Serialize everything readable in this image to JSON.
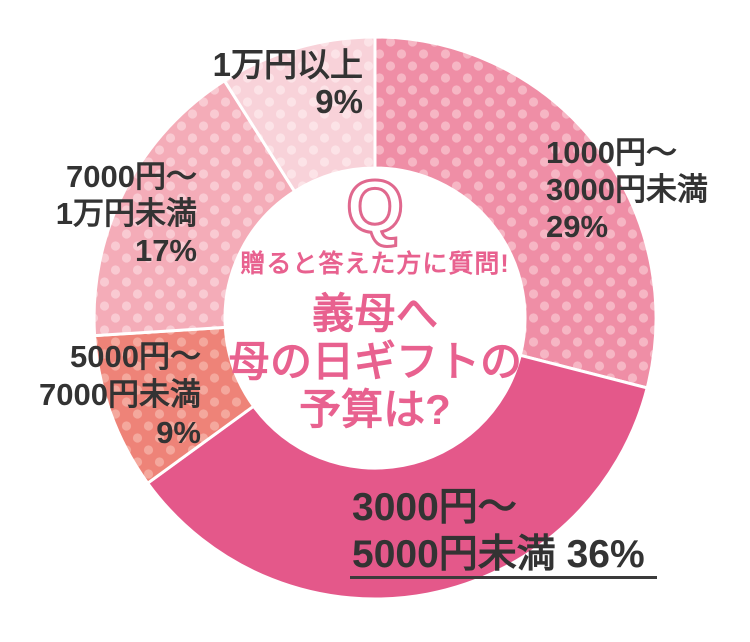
{
  "chart_data": {
    "type": "pie",
    "style": "donut",
    "title": "義母へ母の日ギフトの予算は?",
    "subtitle": "贈ると答えた方に質問!",
    "unit": "%",
    "start_angle_deg": 0,
    "direction": "clockwise",
    "legend": "none",
    "categories": [
      "1000円〜3000円未満",
      "3000円〜5000円未満",
      "5000円〜7000円未満",
      "7000円〜1万円未満",
      "1万円以上"
    ],
    "values": [
      29,
      36,
      9,
      17,
      9
    ],
    "segments": [
      {
        "id": "1000-3000",
        "label": "1000円〜3000円未満",
        "value": 29,
        "display": [
          "1000円〜",
          "3000円未満",
          "29%"
        ],
        "pattern": "dots",
        "base_color": "#ef8ea6",
        "dot_color": "#f6b6c4"
      },
      {
        "id": "3000-5000",
        "label": "3000円〜5000円未満",
        "value": 36,
        "display": [
          "3000円〜",
          "5000円未満 36%"
        ],
        "pattern": "solid",
        "base_color": "#e4588a",
        "underlined": true
      },
      {
        "id": "5000-7000",
        "label": "5000円〜7000円未満",
        "value": 9,
        "display": [
          "5000円〜",
          "7000円未満",
          "9%"
        ],
        "pattern": "dots",
        "base_color": "#ee8378",
        "dot_color": "#f4a89d"
      },
      {
        "id": "7000-10000",
        "label": "7000円〜1万円未満",
        "value": 17,
        "display": [
          "7000円〜",
          "1万円未満",
          "17%"
        ],
        "pattern": "dots",
        "base_color": "#f4acb8",
        "dot_color": "#f9cad2"
      },
      {
        "id": "over-10000",
        "label": "1万円以上",
        "value": 9,
        "display": [
          "1万円以上",
          "9%"
        ],
        "pattern": "dots",
        "base_color": "#f8d2d9",
        "dot_color": "#fce3e7"
      }
    ],
    "center": {
      "q_mark": "Q",
      "subtitle": "贈ると答えた方に質問!",
      "title_lines": [
        "義母へ",
        "母の日ギフトの",
        "予算は?"
      ]
    },
    "colors": {
      "background": "#ffffff",
      "label_text": "#333333",
      "center_text": "#e8618f",
      "q_outline": "#e0688e",
      "separator": "#ffffff",
      "underline": "#3b3b3b"
    }
  }
}
